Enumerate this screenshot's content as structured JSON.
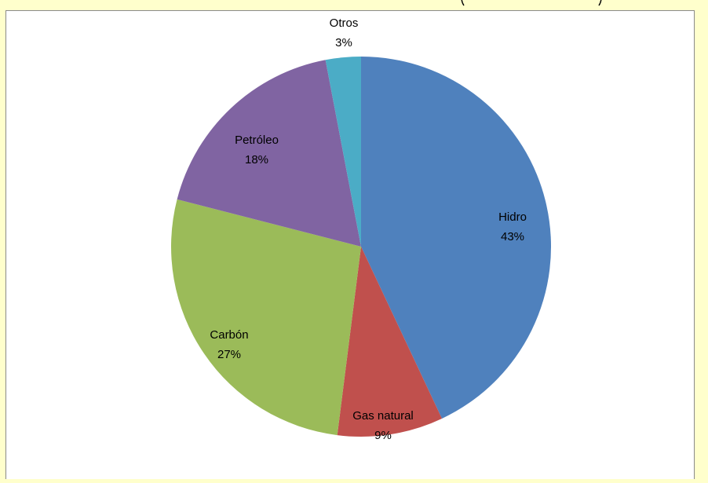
{
  "chart_data": {
    "type": "pie",
    "title": "",
    "slices": [
      {
        "label": "Hidro",
        "value": 43,
        "display": "43%",
        "color": "#4f81bd"
      },
      {
        "label": "Gas natural",
        "value": 9,
        "display": "9%",
        "color": "#c0504d"
      },
      {
        "label": "Carbón",
        "value": 27,
        "display": "27%",
        "color": "#9bbb59"
      },
      {
        "label": "Petróleo",
        "value": 18,
        "display": "18%",
        "color": "#8064a2"
      },
      {
        "label": "Otros",
        "value": 3,
        "display": "3%",
        "color": "#4bacc6"
      }
    ],
    "legend": "none",
    "data_labels": "category-and-percent"
  },
  "colors": {
    "background": "#ffffcc",
    "plot_background": "#ffffff",
    "border": "#8a8a8a"
  }
}
